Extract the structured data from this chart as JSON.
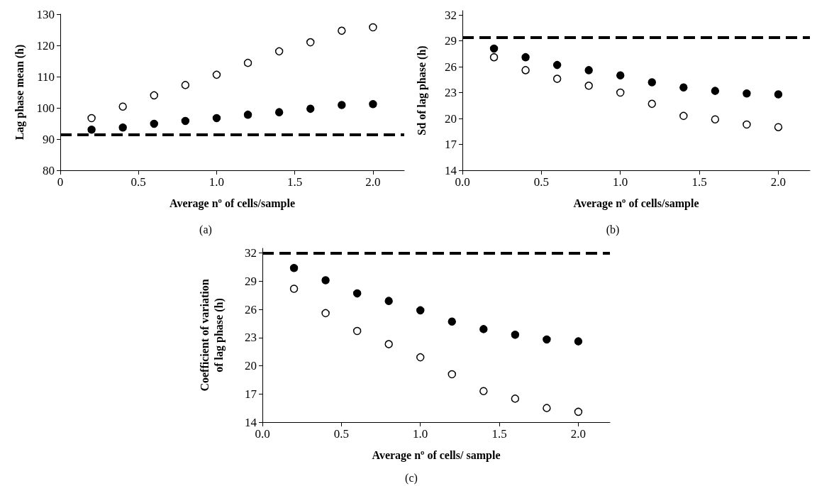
{
  "chart_data": [
    {
      "type": "scatter",
      "xlabel": "Average nº of cells/sample",
      "ylabel": "Lag phase mean (h)",
      "annotations": [
        "(a)"
      ],
      "x": [
        0.2,
        0.4,
        0.6,
        0.8,
        1.0,
        1.2,
        1.4,
        1.6,
        1.8,
        2.0
      ],
      "xlim": [
        0,
        2.2
      ],
      "xticks": [
        0,
        0.5,
        {
          "value": 1,
          "label": "1.0"
        },
        1.5,
        {
          "value": 2,
          "label": "2.0"
        }
      ],
      "ylim": [
        80,
        130
      ],
      "yticks": [
        80,
        90,
        100,
        110,
        120,
        130
      ],
      "grid": false,
      "marker": "circle",
      "series": [
        {
          "color": "#ffffff",
          "values": [
            96.7,
            100.4,
            104.0,
            107.3,
            110.6,
            114.4,
            118.1,
            121.0,
            124.7,
            125.8
          ]
        },
        {
          "color": "#000000",
          "values": [
            93.0,
            93.7,
            94.9,
            95.8,
            96.7,
            97.8,
            98.6,
            99.7,
            100.9,
            101.2
          ]
        }
      ],
      "ref_lines": [
        {
          "axis": "y",
          "value": 91.5,
          "color": "#000000",
          "line_style": "dashed"
        }
      ]
    },
    {
      "type": "scatter",
      "xlabel": "Average nº of cells/sample",
      "ylabel": "Sd of lag phase (h)",
      "annotations": [
        "(b)"
      ],
      "x": [
        0.2,
        0.4,
        0.6,
        0.8,
        1.0,
        1.2,
        1.4,
        1.6,
        1.8,
        2.0
      ],
      "xlim": [
        0,
        2.2
      ],
      "xticks": [
        {
          "value": 0,
          "label": "0.0"
        },
        0.5,
        {
          "value": 1,
          "label": "1.0"
        },
        1.5,
        {
          "value": 2,
          "label": "2.0"
        }
      ],
      "ylim": [
        14,
        32.5
      ],
      "yticks": [
        14,
        17,
        20,
        23,
        26,
        29,
        32
      ],
      "grid": false,
      "marker": "circle",
      "series": [
        {
          "color": "#000000",
          "values": [
            28.1,
            27.1,
            26.2,
            25.6,
            25.0,
            24.2,
            23.6,
            23.2,
            22.9,
            22.8
          ]
        },
        {
          "color": "#ffffff",
          "values": [
            27.1,
            25.6,
            24.6,
            23.8,
            23.0,
            21.7,
            20.3,
            19.9,
            19.3,
            19.0
          ]
        }
      ],
      "ref_lines": [
        {
          "axis": "y",
          "value": 29.4,
          "color": "#000000",
          "line_style": "dashed"
        }
      ]
    },
    {
      "type": "scatter",
      "xlabel": "Average nº of cells/ sample",
      "ylabel": "Coefficient of variation\nof lag phase (h)",
      "annotations": [
        "(c)"
      ],
      "x": [
        0.2,
        0.4,
        0.6,
        0.8,
        1.0,
        1.2,
        1.4,
        1.6,
        1.8,
        2.0
      ],
      "xlim": [
        0,
        2.2
      ],
      "xticks": [
        {
          "value": 0,
          "label": "0.0"
        },
        0.5,
        {
          "value": 1,
          "label": "1.0"
        },
        1.5,
        {
          "value": 2,
          "label": "2.0"
        }
      ],
      "ylim": [
        14,
        32.5
      ],
      "yticks": [
        14,
        17,
        20,
        23,
        26,
        29,
        32
      ],
      "grid": false,
      "marker": "circle",
      "series": [
        {
          "color": "#000000",
          "values": [
            30.4,
            29.1,
            27.7,
            26.9,
            25.9,
            24.7,
            23.9,
            23.3,
            22.8,
            22.6
          ]
        },
        {
          "color": "#ffffff",
          "values": [
            28.2,
            25.6,
            23.7,
            22.3,
            20.9,
            19.1,
            17.3,
            16.5,
            15.5,
            15.1
          ]
        }
      ],
      "ref_lines": [
        {
          "axis": "y",
          "value": 32.0,
          "color": "#000000",
          "line_style": "dashed"
        }
      ]
    }
  ]
}
